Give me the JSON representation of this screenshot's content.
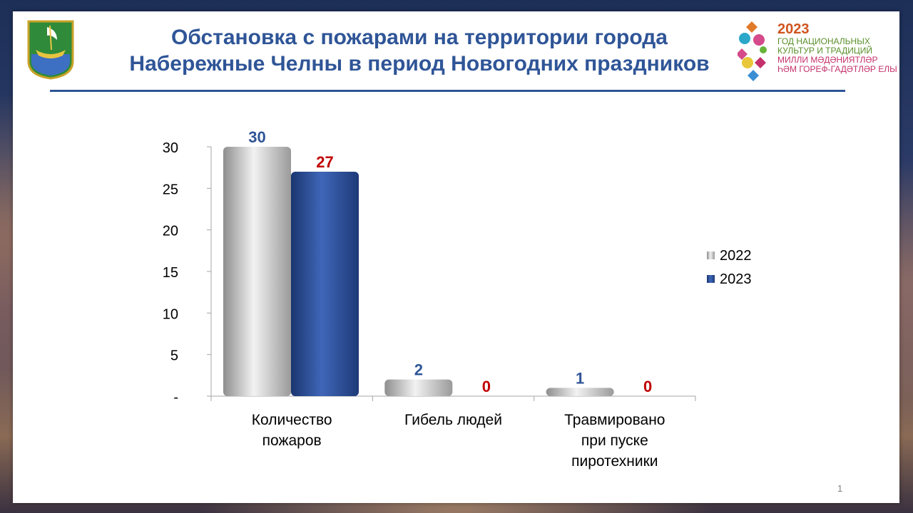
{
  "slide": {
    "title_line1": "Обстановка с пожарами на территории города",
    "title_line2": "Набережные Челны в период Новогодних праздников",
    "page_number": "1"
  },
  "year_logo": {
    "year": "2023",
    "line1": "ГОД НАЦИОНАЛЬНЫХ",
    "line2": "КУЛЬТУР И ТРАДИЦИЙ",
    "line3": "МИЛЛИ МӘДӘНИЯТЛӘР",
    "line4": "ҺӘМ ГОРЕФ-ГАДӘТЛӘР ЕЛЫ"
  },
  "colors": {
    "title": "#2f5597",
    "series_2022": "#b8b8b8",
    "series_2023": "#2e4f95",
    "label_2022": "#2f5597",
    "label_2023": "#c00000"
  },
  "chart_data": {
    "type": "bar",
    "categories": [
      [
        "Количество",
        "пожаров"
      ],
      [
        "Гибель людей"
      ],
      [
        "Травмировано",
        "при пуске",
        "пиротехники"
      ]
    ],
    "series": [
      {
        "name": "2022",
        "values": [
          30,
          2,
          1
        ]
      },
      {
        "name": "2023",
        "values": [
          27,
          0,
          0
        ]
      }
    ],
    "y_ticks": [
      "-",
      "5",
      "10",
      "15",
      "20",
      "25",
      "30"
    ],
    "ylim": [
      0,
      30
    ],
    "legend_position": "right",
    "grid": false
  }
}
